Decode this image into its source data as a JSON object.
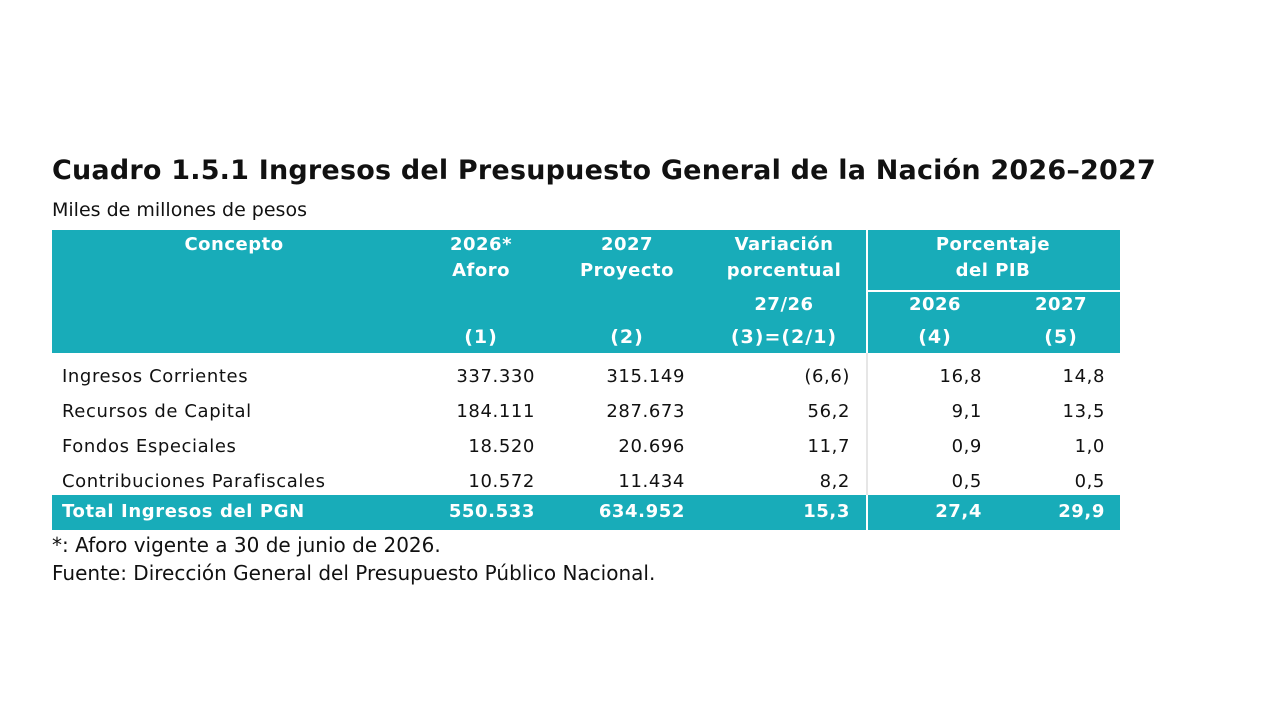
{
  "title": "Cuadro 1.5.1 Ingresos del Presupuesto General de la Nación 2026–2027",
  "subtitle": "Miles de millones de pesos",
  "table": {
    "headers": {
      "concepto": "Concepto",
      "aforo_line1": "2026*",
      "aforo_line2": "Aforo",
      "aforo_num": "(1)",
      "proyecto_line1": "2027",
      "proyecto_line2": "Proyecto",
      "proyecto_num": "(2)",
      "variacion_line1": "Variación",
      "variacion_line2": "porcentual",
      "variacion_sub": "27/26",
      "variacion_num": "(3)=(2/1)",
      "pib_line1": "Porcentaje",
      "pib_line2": "del PIB",
      "pib_2026": "2026",
      "pib_2026_num": "(4)",
      "pib_2027": "2027",
      "pib_2027_num": "(5)"
    },
    "rows": [
      {
        "concepto": "Ingresos Corrientes",
        "aforo": "337.330",
        "proyecto": "315.149",
        "variacion": "(6,6)",
        "pib2026": "16,8",
        "pib2027": "14,8"
      },
      {
        "concepto": "Recursos de Capital",
        "aforo": "184.111",
        "proyecto": "287.673",
        "variacion": "56,2",
        "pib2026": "9,1",
        "pib2027": "13,5"
      },
      {
        "concepto": "Fondos Especiales",
        "aforo": "18.520",
        "proyecto": "20.696",
        "variacion": "11,7",
        "pib2026": "0,9",
        "pib2027": "1,0"
      },
      {
        "concepto": "Contribuciones Parafiscales",
        "aforo": "10.572",
        "proyecto": "11.434",
        "variacion": "8,2",
        "pib2026": "0,5",
        "pib2027": "0,5"
      }
    ],
    "total": {
      "concepto": "Total Ingresos del PGN",
      "aforo": "550.533",
      "proyecto": "634.952",
      "variacion": "15,3",
      "pib2026": "27,4",
      "pib2027": "29,9"
    }
  },
  "notes": {
    "aforo": "*: Aforo vigente a 30 de junio de 2026.",
    "fuente": "Fuente: Dirección General del Presupuesto Público Nacional."
  },
  "colors": {
    "header_bg": "#18acb9",
    "header_text": "#ffffff"
  }
}
